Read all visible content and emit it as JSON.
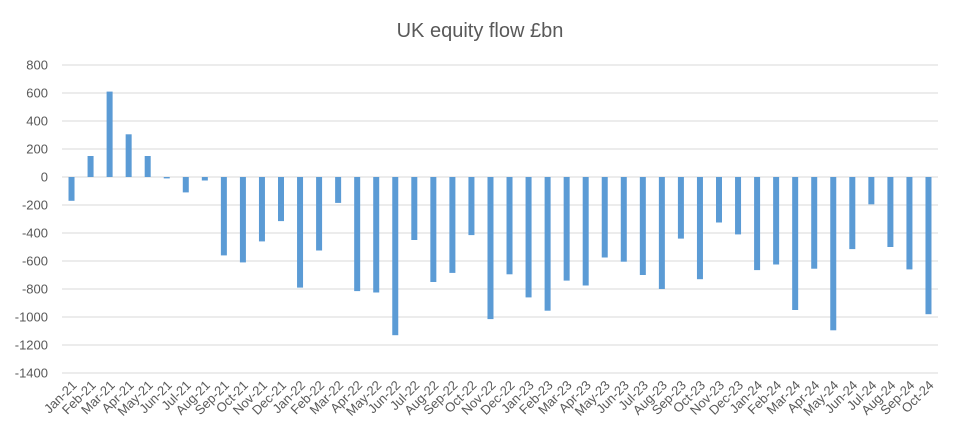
{
  "chart_data": {
    "type": "bar",
    "title": "UK equity flow £bn",
    "xlabel": "",
    "ylabel": "",
    "ylim": [
      -1400,
      800
    ],
    "yticks": [
      800,
      600,
      400,
      200,
      0,
      -200,
      -400,
      -600,
      -800,
      -1000,
      -1200,
      -1400
    ],
    "grid": true,
    "legend": "none",
    "bar_color": "#5B9BD5",
    "categories": [
      "Jan-21",
      "Feb-21",
      "Mar-21",
      "Apr-21",
      "May-21",
      "Jun-21",
      "Jul-21",
      "Aug-21",
      "Sep-21",
      "Oct-21",
      "Nov-21",
      "Dec-21",
      "Jan-22",
      "Feb-22",
      "Mar-22",
      "Apr-22",
      "May-22",
      "Jun-22",
      "Jul-22",
      "Aug-22",
      "Sep-22",
      "Oct-22",
      "Nov-22",
      "Dec-22",
      "Jan-23",
      "Feb-23",
      "Mar-23",
      "Apr-23",
      "May-23",
      "Jun-23",
      "Jul-23",
      "Aug-23",
      "Sep-23",
      "Oct-23",
      "Nov-23",
      "Dec-23",
      "Jan-24",
      "Feb-24",
      "Mar-24",
      "Apr-24",
      "May-24",
      "Jun-24",
      "Jul-24",
      "Aug-24",
      "Sep-24",
      "Oct-24"
    ],
    "values": [
      -170,
      150,
      610,
      305,
      150,
      -10,
      -110,
      -25,
      -560,
      -610,
      -460,
      -315,
      -790,
      -525,
      -185,
      -815,
      -825,
      -1130,
      -450,
      -750,
      -685,
      -415,
      -1015,
      -695,
      -860,
      -955,
      -740,
      -775,
      -575,
      -605,
      -700,
      -800,
      -440,
      -730,
      -325,
      -410,
      -665,
      -625,
      -950,
      -655,
      -1095,
      -515,
      -195,
      -500,
      -660,
      -980
    ]
  }
}
